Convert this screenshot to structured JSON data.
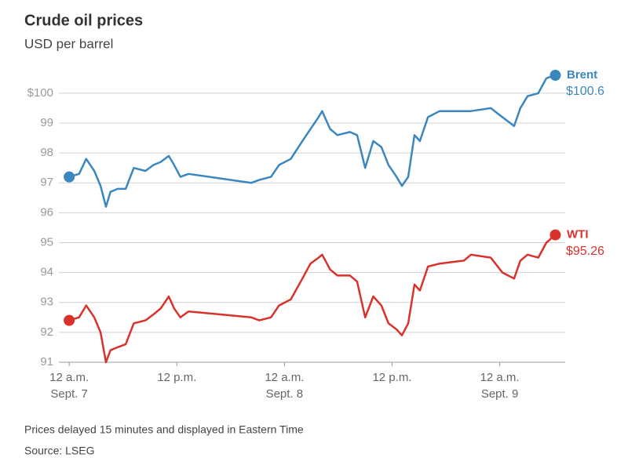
{
  "chart_data": {
    "type": "line",
    "title": "Crude oil prices",
    "subtitle": "USD per barrel",
    "footnote": "Prices delayed 15 minutes and displayed in Eastern Time",
    "source": "Source: LSEG",
    "x": [
      0,
      1.1,
      1.9,
      2.8,
      3.5,
      4.1,
      4.6,
      5.4,
      6.3,
      7.2,
      8.5,
      9.4,
      10.2,
      11.1,
      11.7,
      12.4,
      13.3,
      20.3,
      21.2,
      22.5,
      23.4,
      24.7,
      26.0,
      26.9,
      27.8,
      28.2,
      29.1,
      29.9,
      31.3,
      32.1,
      33.0,
      33.9,
      34.8,
      35.6,
      36.5,
      37.1,
      37.8,
      38.5,
      39.1,
      40.0,
      41.3,
      44.0,
      44.8,
      47.0,
      48.3,
      49.6,
      50.3,
      51.1,
      52.3,
      53.2,
      54.2
    ],
    "series": [
      {
        "name": "Brent",
        "color": "#3a87c0",
        "end_label": "$100.6",
        "values": [
          97.2,
          97.3,
          97.8,
          97.4,
          96.9,
          96.2,
          96.7,
          96.8,
          96.8,
          97.5,
          97.4,
          97.6,
          97.7,
          97.9,
          97.6,
          97.2,
          97.3,
          97.0,
          97.1,
          97.2,
          97.6,
          97.8,
          98.4,
          98.8,
          99.2,
          99.4,
          98.8,
          98.6,
          98.7,
          98.6,
          97.5,
          98.4,
          98.2,
          97.6,
          97.2,
          96.9,
          97.2,
          98.6,
          98.4,
          99.2,
          99.4,
          99.4,
          99.4,
          99.5,
          99.2,
          98.9,
          99.5,
          99.9,
          100.0,
          100.5,
          100.6
        ]
      },
      {
        "name": "WTI",
        "color": "#d9312b",
        "end_label": "$95.26",
        "values": [
          92.4,
          92.5,
          92.9,
          92.5,
          92.0,
          91.0,
          91.4,
          91.5,
          91.6,
          92.3,
          92.4,
          92.6,
          92.8,
          93.2,
          92.8,
          92.5,
          92.7,
          92.5,
          92.4,
          92.5,
          92.9,
          93.1,
          93.8,
          94.3,
          94.5,
          94.6,
          94.1,
          93.9,
          93.9,
          93.7,
          92.5,
          93.2,
          92.9,
          92.3,
          92.1,
          91.9,
          92.3,
          93.6,
          93.4,
          94.2,
          94.3,
          94.4,
          94.6,
          94.5,
          94.0,
          93.8,
          94.4,
          94.6,
          94.5,
          95.0,
          95.26
        ]
      }
    ],
    "xlim": [
      -2.2,
      55.3
    ],
    "xticks": [
      {
        "value": 0,
        "label": [
          "12 a.m.",
          "Sept. 7"
        ]
      },
      {
        "value": 12,
        "label": [
          "12 p.m."
        ]
      },
      {
        "value": 24,
        "label": [
          "12 a.m.",
          "Sept. 8"
        ]
      },
      {
        "value": 36,
        "label": [
          "12 p.m."
        ]
      },
      {
        "value": 48,
        "label": [
          "12 a.m.",
          "Sept. 9"
        ]
      }
    ],
    "ylim": [
      91,
      100.6
    ],
    "yticks": [
      91,
      92,
      93,
      94,
      95,
      96,
      97,
      98,
      99,
      {
        "value": 100,
        "label": "$100"
      }
    ],
    "grid": true
  }
}
